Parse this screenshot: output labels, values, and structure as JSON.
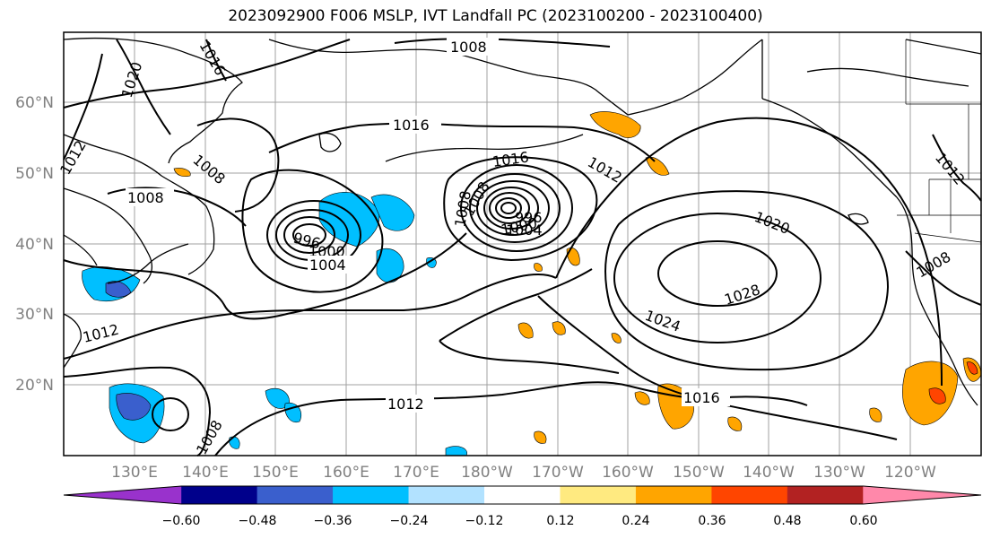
{
  "title": "2023092900 F006 MSLP, IVT Landfall PC (2023100200 - 2023100400)",
  "lat_labels": [
    "60°N",
    "50°N",
    "40°N",
    "30°N",
    "20°N"
  ],
  "lon_labels": [
    "130°E",
    "140°E",
    "150°E",
    "160°E",
    "170°E",
    "180°W",
    "170°W",
    "160°W",
    "150°W",
    "140°W",
    "130°W",
    "120°W"
  ],
  "isobar_labels": [
    "1008",
    "1016",
    "1020",
    "1016",
    "1012",
    "1008",
    "1008",
    "1016",
    "1008",
    "1012",
    "1004",
    "996",
    "1000",
    "1004",
    "1008",
    "996",
    "1000",
    "1020",
    "1028",
    "1024",
    "1016",
    "1012",
    "1012",
    "1008",
    "1012",
    "1008"
  ],
  "colorbar": {
    "colors": [
      "#9932cc",
      "#00008b",
      "#3a5fcd",
      "#00bfff",
      "#b2e2ff",
      "#ffffff",
      "#ffea80",
      "#ffa500",
      "#ff4500",
      "#b22222",
      "#ff88aa"
    ],
    "tick_labels": [
      "−0.60",
      "−0.48",
      "−0.36",
      "−0.24",
      "−0.12",
      "0.12",
      "0.24",
      "0.36",
      "0.48",
      "0.60"
    ]
  },
  "colors": {
    "positive_shading": "#ffa500",
    "negative_shading": "#00bfff",
    "isobar": "#000000",
    "gridline": "#a0a0a0",
    "axis_label": "#808080"
  }
}
